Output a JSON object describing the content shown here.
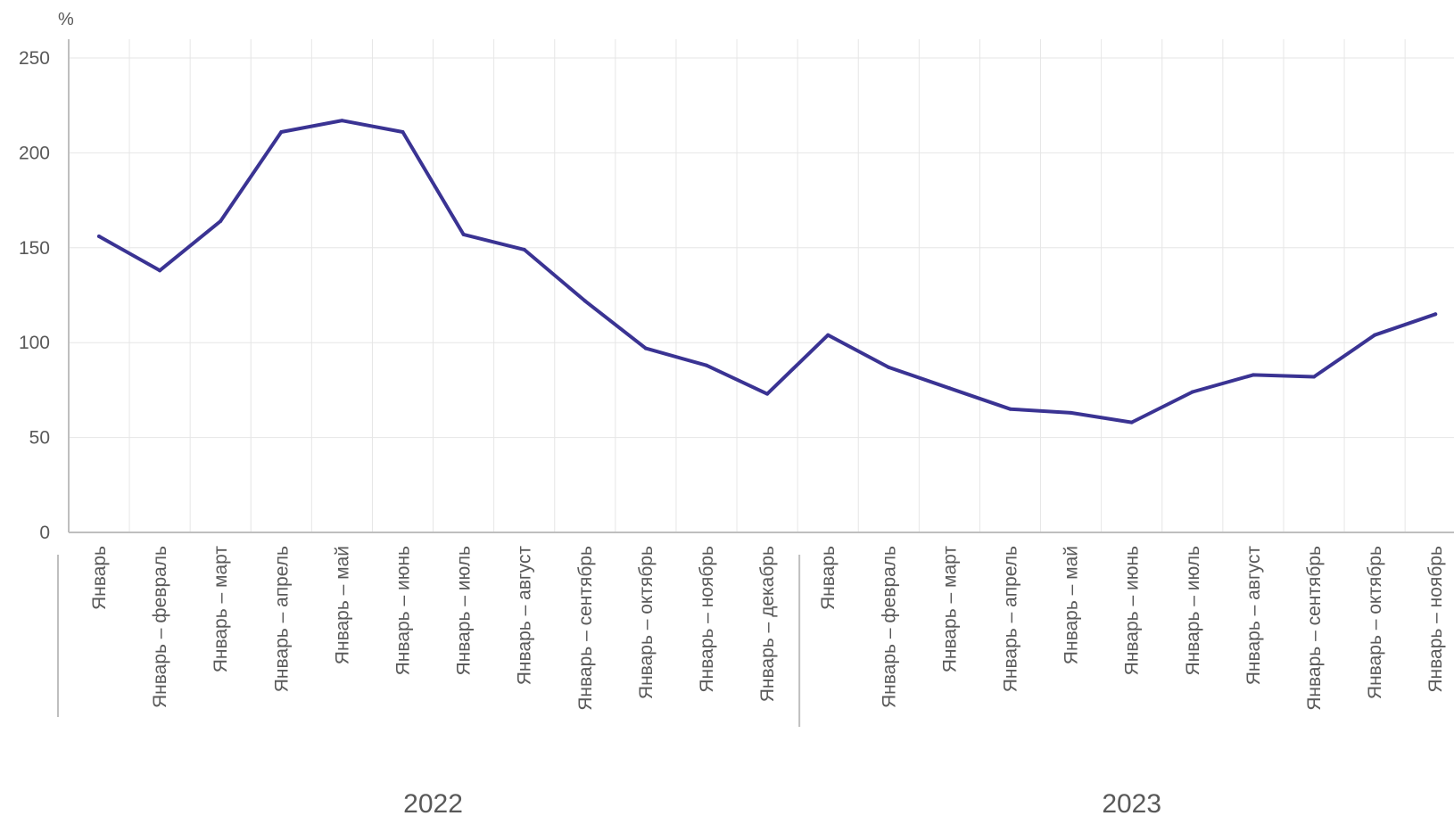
{
  "chart_data": {
    "type": "line",
    "ylabel": "%",
    "ylim": [
      0,
      250
    ],
    "yticks": [
      0,
      50,
      100,
      150,
      200,
      250
    ],
    "grid": true,
    "legend": "none",
    "colors": {
      "line": "#3a3393",
      "grid": "#e6e6e6",
      "axis": "#bfbfbf",
      "text": "#595959"
    },
    "groups": [
      {
        "label": "2022",
        "categories": [
          "Январь",
          "Январь – февраль",
          "Январь – март",
          "Январь – апрель",
          "Январь – май",
          "Январь – июнь",
          "Январь – июль",
          "Январь – август",
          "Январь – сентябрь",
          "Январь – октябрь",
          "Январь – ноябрь",
          "Январь – декабрь"
        ]
      },
      {
        "label": "2023",
        "categories": [
          "Январь",
          "Январь – февраль",
          "Январь – март",
          "Январь – апрель",
          "Январь – май",
          "Январь – июнь",
          "Январь – июль",
          "Январь – август",
          "Январь – сентябрь",
          "Январь – октябрь",
          "Январь – ноябрь"
        ]
      }
    ],
    "series": [
      {
        "values": [
          156,
          138,
          164,
          211,
          217,
          211,
          157,
          149,
          122,
          97,
          88,
          73,
          104,
          87,
          76,
          65,
          63,
          58,
          74,
          83,
          82,
          104,
          115
        ]
      }
    ]
  }
}
